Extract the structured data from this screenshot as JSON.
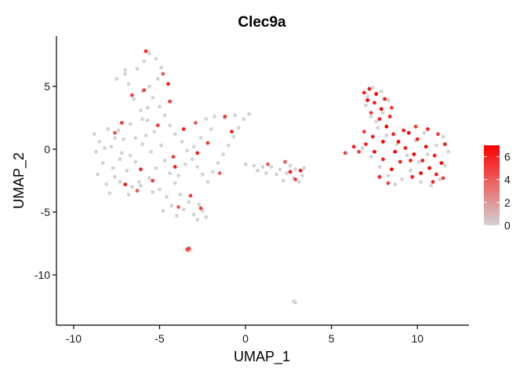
{
  "chart_data": {
    "type": "scatter",
    "title": "Clec9a",
    "xlabel": "UMAP_1",
    "ylabel": "UMAP_2",
    "xlim": [
      -11,
      13
    ],
    "ylim": [
      -14,
      9
    ],
    "x_ticks": [
      -10,
      -5,
      0,
      5,
      10
    ],
    "x_tick_labels": [
      "-10",
      "-5",
      "0",
      "5",
      "10"
    ],
    "y_ticks": [
      -10,
      -5,
      0,
      5
    ],
    "y_tick_labels": [
      "-10",
      "-5",
      "0",
      "5"
    ],
    "grid": false,
    "legend": {
      "placement": "right",
      "type": "colorbar",
      "min": 0,
      "max": 7,
      "ticks": [
        0,
        2,
        4,
        6
      ],
      "tick_labels": [
        "0",
        "2",
        "4",
        "6"
      ],
      "low_color": "#d3d3d3",
      "high_color": "#ff0000"
    },
    "points": [
      [
        -8.8,
        1.2,
        0
      ],
      [
        -8.5,
        0.6,
        0
      ],
      [
        -8.7,
        -0.2,
        0
      ],
      [
        -8.3,
        -1.1,
        0
      ],
      [
        -8.6,
        -2.0,
        0
      ],
      [
        -8.1,
        -2.8,
        0
      ],
      [
        -7.9,
        -3.5,
        0
      ],
      [
        -7.6,
        -2.2,
        0
      ],
      [
        -7.8,
        0.2,
        0
      ],
      [
        -7.4,
        1.5,
        0
      ],
      [
        -7.1,
        0.8,
        0
      ],
      [
        -7.3,
        -0.8,
        0
      ],
      [
        -6.9,
        -1.7,
        0
      ],
      [
        -6.6,
        -3.0,
        0
      ],
      [
        -6.8,
        -3.6,
        0
      ],
      [
        -6.2,
        -2.6,
        0
      ],
      [
        -6.4,
        -1.0,
        0
      ],
      [
        -6.0,
        0.4,
        0
      ],
      [
        -5.8,
        1.1,
        0
      ],
      [
        -5.5,
        -0.2,
        0
      ],
      [
        -5.2,
        -1.5,
        0
      ],
      [
        -5.6,
        -2.3,
        0
      ],
      [
        -5.0,
        -3.2,
        0
      ],
      [
        -4.6,
        -3.8,
        0
      ],
      [
        -4.3,
        -4.5,
        0
      ],
      [
        -4.8,
        -4.9,
        0
      ],
      [
        -4.0,
        -5.3,
        0
      ],
      [
        -3.6,
        -4.8,
        0
      ],
      [
        -3.3,
        -4.2,
        0
      ],
      [
        -3.0,
        -5.2,
        0
      ],
      [
        -2.8,
        -5.6,
        0
      ],
      [
        -2.5,
        -4.9,
        0
      ],
      [
        -2.3,
        -5.4,
        0
      ],
      [
        -2.7,
        -4.4,
        0
      ],
      [
        -3.8,
        -3.6,
        0
      ],
      [
        -4.1,
        -2.7,
        0
      ],
      [
        -4.4,
        -1.9,
        0
      ],
      [
        -4.7,
        -0.9,
        0
      ],
      [
        -4.9,
        0.3,
        0
      ],
      [
        -5.3,
        1.4,
        0
      ],
      [
        -5.7,
        2.3,
        0
      ],
      [
        -6.1,
        3.1,
        0
      ],
      [
        -6.5,
        4.0,
        0
      ],
      [
        -6.8,
        5.2,
        0
      ],
      [
        -7.0,
        6.0,
        0
      ],
      [
        -6.3,
        6.4,
        0
      ],
      [
        -5.9,
        7.0,
        0
      ],
      [
        -5.6,
        7.6,
        0
      ],
      [
        -5.2,
        7.2,
        0
      ],
      [
        -4.9,
        6.5,
        0
      ],
      [
        -5.1,
        5.6,
        0
      ],
      [
        -5.6,
        5.0,
        0
      ],
      [
        -6.0,
        4.6,
        0
      ],
      [
        -5.4,
        4.1,
        0
      ],
      [
        -5.0,
        3.4,
        0
      ],
      [
        -4.7,
        2.7,
        0
      ],
      [
        -4.4,
        1.9,
        0
      ],
      [
        -4.1,
        1.2,
        0
      ],
      [
        -3.7,
        0.6,
        0
      ],
      [
        -3.4,
        -0.1,
        0
      ],
      [
        -3.1,
        -0.8,
        0
      ],
      [
        -2.8,
        -1.4,
        0
      ],
      [
        -2.5,
        -2.0,
        0
      ],
      [
        -2.2,
        -2.6,
        0
      ],
      [
        -1.9,
        -1.8,
        0
      ],
      [
        -1.6,
        -1.1,
        0
      ],
      [
        -1.3,
        -0.4,
        0
      ],
      [
        -1.0,
        0.3,
        0
      ],
      [
        -0.7,
        1.0,
        0
      ],
      [
        -0.4,
        1.7,
        0
      ],
      [
        -0.1,
        2.4,
        0
      ],
      [
        0.2,
        2.8,
        0
      ],
      [
        -0.6,
        2.7,
        0
      ],
      [
        -1.2,
        2.5,
        0
      ],
      [
        -1.8,
        2.6,
        0
      ],
      [
        -2.3,
        2.4,
        0
      ],
      [
        -2.0,
        1.6,
        0
      ],
      [
        -2.6,
        0.9,
        0
      ],
      [
        -3.0,
        0.2,
        0
      ],
      [
        -3.5,
        -1.2,
        0
      ],
      [
        -3.9,
        -2.1,
        0
      ],
      [
        -7.2,
        -0.3,
        0
      ],
      [
        -7.6,
        0.9,
        0
      ],
      [
        -8.0,
        1.6,
        0
      ],
      [
        -8.2,
        0.1,
        0
      ],
      [
        -7.7,
        -1.5,
        0
      ],
      [
        -7.3,
        -2.6,
        0
      ],
      [
        -6.1,
        -2.9,
        0
      ],
      [
        -5.4,
        -3.4,
        0
      ],
      [
        -6.7,
        -0.5,
        0
      ],
      [
        -6.4,
        0.9,
        0
      ],
      [
        -6.7,
        2.0,
        0
      ],
      [
        -6.0,
        2.4,
        0
      ],
      [
        -5.7,
        3.3,
        0
      ],
      [
        -7.5,
        5.6,
        0
      ],
      [
        -7.0,
        6.3,
        0
      ],
      [
        0.0,
        -1.2,
        0
      ],
      [
        0.5,
        -1.3,
        0
      ],
      [
        1.0,
        -1.4,
        0
      ],
      [
        1.5,
        -1.4,
        0
      ],
      [
        2.0,
        -1.6,
        0
      ],
      [
        2.4,
        -1.9,
        0
      ],
      [
        2.8,
        -2.3,
        0
      ],
      [
        3.1,
        -2.6,
        0
      ],
      [
        3.3,
        -2.1,
        0
      ],
      [
        2.6,
        -1.3,
        0
      ],
      [
        1.8,
        -2.0,
        0
      ],
      [
        1.2,
        -1.9,
        0
      ],
      [
        0.7,
        -1.7,
        0
      ],
      [
        2.2,
        -2.5,
        0
      ],
      [
        2.9,
        -1.6,
        0
      ],
      [
        3.4,
        -1.5,
        0
      ],
      [
        -3.4,
        -7.9,
        0
      ],
      [
        -3.2,
        -8.0,
        0
      ],
      [
        -3.3,
        -8.1,
        0
      ],
      [
        2.8,
        -12.1,
        0
      ],
      [
        2.9,
        -12.2,
        0
      ],
      [
        6.8,
        0.1,
        0
      ],
      [
        7.3,
        -0.6,
        0
      ],
      [
        7.8,
        -1.4,
        0
      ],
      [
        8.3,
        -2.1,
        0
      ],
      [
        8.7,
        -2.8,
        0
      ],
      [
        9.1,
        -2.4,
        0
      ],
      [
        9.6,
        -1.7,
        0
      ],
      [
        10.1,
        -1.0,
        0
      ],
      [
        10.6,
        -0.4,
        0
      ],
      [
        11.1,
        0.3,
        0
      ],
      [
        11.5,
        1.0,
        0
      ],
      [
        11.8,
        -0.2,
        0
      ],
      [
        11.6,
        -1.3,
        0
      ],
      [
        11.3,
        -2.4,
        0
      ],
      [
        10.8,
        -2.9,
        0
      ],
      [
        10.2,
        -2.6,
        0
      ],
      [
        9.4,
        -0.5,
        0
      ],
      [
        8.8,
        0.4,
        0
      ],
      [
        8.2,
        1.1,
        0
      ],
      [
        7.7,
        1.7,
        0
      ],
      [
        7.3,
        2.6,
        0
      ],
      [
        7.0,
        3.5,
        0
      ],
      [
        7.1,
        4.2,
        0
      ],
      [
        7.4,
        4.9,
        0
      ],
      [
        7.9,
        4.6,
        0
      ],
      [
        8.3,
        3.9,
        0
      ],
      [
        8.0,
        2.9,
        0
      ],
      [
        7.6,
        2.2,
        0
      ],
      [
        10.4,
        1.3,
        0
      ],
      [
        9.9,
        0.7,
        0
      ],
      [
        -7.2,
        2.1,
        5
      ],
      [
        -7.6,
        1.3,
        4
      ],
      [
        -6.1,
        -1.6,
        6
      ],
      [
        -5.4,
        -2.5,
        5
      ],
      [
        -5.9,
        4.7,
        5
      ],
      [
        -4.8,
        6.0,
        4
      ],
      [
        -5.8,
        7.8,
        6
      ],
      [
        -4.5,
        5.2,
        6
      ],
      [
        -4.2,
        -0.6,
        5
      ],
      [
        -3.6,
        1.6,
        6
      ],
      [
        -3.2,
        -3.7,
        5
      ],
      [
        -3.9,
        -4.6,
        4
      ],
      [
        -2.8,
        -0.3,
        6
      ],
      [
        -2.2,
        0.5,
        5
      ],
      [
        -1.5,
        -1.9,
        4
      ],
      [
        -0.8,
        1.4,
        6
      ],
      [
        -1.2,
        2.6,
        5
      ],
      [
        -2.9,
        2.1,
        4
      ],
      [
        -4.4,
        3.8,
        5
      ],
      [
        -6.3,
        -3.3,
        4
      ],
      [
        -7.0,
        -2.8,
        6
      ],
      [
        -5.1,
        1.9,
        5
      ],
      [
        1.3,
        -1.2,
        4
      ],
      [
        2.6,
        -1.8,
        6
      ],
      [
        2.9,
        -2.4,
        5
      ],
      [
        3.2,
        -1.7,
        6
      ],
      [
        2.3,
        -1.0,
        4
      ],
      [
        -3.3,
        -7.9,
        5
      ],
      [
        -3.4,
        -8.0,
        4
      ],
      [
        -2.6,
        -4.7,
        5
      ],
      [
        -4.1,
        -1.4,
        6
      ],
      [
        -6.6,
        4.3,
        5
      ],
      [
        7.2,
        4.8,
        6
      ],
      [
        7.6,
        4.4,
        7
      ],
      [
        8.1,
        4.0,
        6
      ],
      [
        8.5,
        3.3,
        5
      ],
      [
        7.9,
        3.2,
        7
      ],
      [
        7.5,
        3.7,
        6
      ],
      [
        7.3,
        2.9,
        5
      ],
      [
        7.8,
        2.4,
        6
      ],
      [
        8.2,
        1.8,
        7
      ],
      [
        8.6,
        1.2,
        6
      ],
      [
        8.9,
        0.6,
        7
      ],
      [
        9.3,
        0.1,
        6
      ],
      [
        9.8,
        -0.4,
        7
      ],
      [
        10.3,
        -0.9,
        6
      ],
      [
        10.7,
        -1.5,
        7
      ],
      [
        11.1,
        -2.0,
        6
      ],
      [
        11.4,
        -1.1,
        7
      ],
      [
        11.0,
        -0.5,
        6
      ],
      [
        10.5,
        0.2,
        7
      ],
      [
        10.0,
        0.8,
        6
      ],
      [
        9.5,
        1.3,
        7
      ],
      [
        9.0,
        -1.0,
        6
      ],
      [
        8.5,
        -1.6,
        7
      ],
      [
        8.0,
        -0.8,
        6
      ],
      [
        7.5,
        -0.2,
        7
      ],
      [
        7.0,
        0.4,
        6
      ],
      [
        6.6,
        -0.2,
        5
      ],
      [
        6.3,
        0.2,
        6
      ],
      [
        5.8,
        -0.3,
        5
      ],
      [
        9.7,
        -2.2,
        6
      ],
      [
        10.2,
        -1.9,
        7
      ],
      [
        10.9,
        -2.6,
        6
      ],
      [
        11.6,
        0.4,
        6
      ],
      [
        11.2,
        1.2,
        5
      ],
      [
        10.6,
        1.6,
        6
      ],
      [
        9.9,
        1.8,
        5
      ],
      [
        9.2,
        1.5,
        6
      ],
      [
        8.7,
        -0.2,
        7
      ],
      [
        9.6,
        -0.9,
        6
      ],
      [
        8.3,
        -2.7,
        5
      ],
      [
        7.8,
        -2.2,
        6
      ],
      [
        11.5,
        -2.3,
        5
      ],
      [
        8.0,
        0.6,
        7
      ],
      [
        7.4,
        1.0,
        6
      ],
      [
        6.9,
        1.4,
        5
      ],
      [
        8.4,
        2.6,
        6
      ],
      [
        7.1,
        3.9,
        7
      ],
      [
        6.9,
        4.5,
        6
      ]
    ]
  }
}
